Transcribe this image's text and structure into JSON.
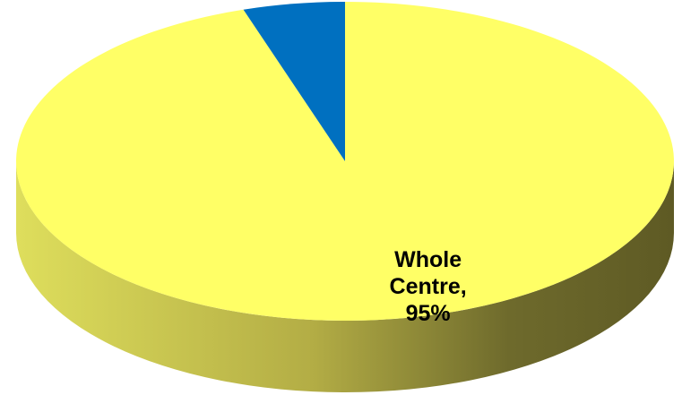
{
  "chart_data": {
    "type": "pie",
    "categories": [
      "Whole Centre,",
      null
    ],
    "values": [
      95,
      5
    ],
    "value_labels": [
      "95%",
      null
    ],
    "colors": [
      "#ffff66",
      "#0070c0"
    ]
  }
}
